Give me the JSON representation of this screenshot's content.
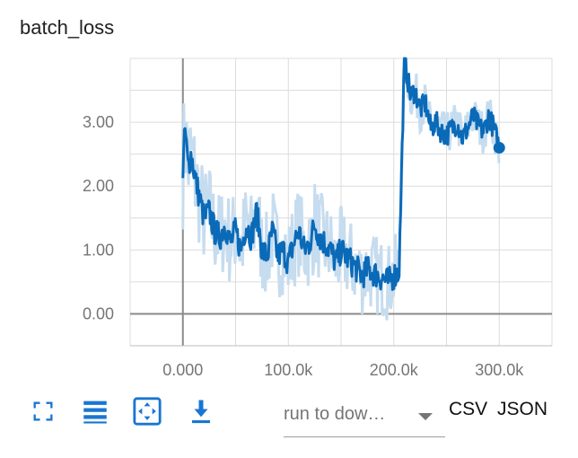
{
  "card": {
    "title": "batch_loss"
  },
  "toolbar": {
    "icons": [
      "fullscreen-icon",
      "list-icon",
      "fit-domain-icon",
      "download-icon"
    ],
    "run_select": {
      "value": "run to dow…",
      "icon": "chevron-down-icon"
    },
    "csv_label": "CSV",
    "json_label": "JSON"
  },
  "colors": {
    "line": "#0a6ab8",
    "smoothed_band": "#c6dcef",
    "grid": "#dcdcdc",
    "axis": "#8a8a8a",
    "icon": "#1976d2"
  },
  "chart_data": {
    "type": "line",
    "title": "batch_loss",
    "xlabel": "",
    "ylabel": "",
    "xlim": [
      -50000,
      350000
    ],
    "ylim": [
      -0.5,
      4.0
    ],
    "x_ticks": [
      0,
      100000,
      200000,
      300000
    ],
    "x_tick_labels": [
      "0.000",
      "100.0k",
      "200.0k",
      "300.0k"
    ],
    "y_ticks": [
      0,
      1,
      2,
      3
    ],
    "y_tick_labels": [
      "0.00",
      "1.00",
      "2.00",
      "3.00"
    ],
    "grid": true,
    "series": [
      {
        "x": [
          0,
          2000,
          5000,
          8000,
          12000,
          16000,
          20000,
          25000,
          30000,
          35000,
          40000,
          45000,
          50000,
          55000,
          60000,
          65000,
          70000,
          75000,
          80000,
          85000,
          90000,
          95000,
          100000,
          105000,
          110000,
          115000,
          120000,
          125000,
          130000,
          135000,
          140000,
          145000,
          150000,
          155000,
          160000,
          165000,
          170000,
          175000,
          180000,
          185000,
          190000,
          195000,
          200000,
          205000,
          207000,
          210000,
          213000,
          216000,
          220000,
          225000,
          230000,
          235000,
          240000,
          245000,
          250000,
          255000,
          260000,
          265000,
          270000,
          275000,
          280000,
          285000,
          290000,
          295000,
          300000
        ],
        "y": [
          2.2,
          2.9,
          2.3,
          2.5,
          2.1,
          1.8,
          1.5,
          1.6,
          1.3,
          1.2,
          1.4,
          1.1,
          1.3,
          1.0,
          1.4,
          1.2,
          1.6,
          1.0,
          0.9,
          1.3,
          0.9,
          1.0,
          0.8,
          1.1,
          1.3,
          1.0,
          1.1,
          1.4,
          1.2,
          1.1,
          1.0,
          0.8,
          1.0,
          0.9,
          0.8,
          0.7,
          0.6,
          0.7,
          0.65,
          0.6,
          0.55,
          0.5,
          0.6,
          0.65,
          2.0,
          3.95,
          3.7,
          3.4,
          3.5,
          3.2,
          3.3,
          2.9,
          3.0,
          2.85,
          2.8,
          2.9,
          3.0,
          2.75,
          2.9,
          3.1,
          2.95,
          2.85,
          3.1,
          2.9,
          2.6
        ]
      }
    ]
  }
}
